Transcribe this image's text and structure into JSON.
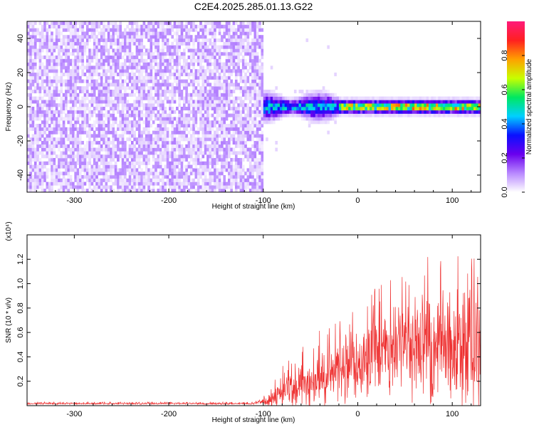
{
  "figure_title": "C2E4.2025.285.01.13.G22",
  "chart_data": [
    {
      "type": "heatmap",
      "name": "spectrogram",
      "xlabel": "Height of straight line (km)",
      "ylabel": "Frequency (Hz)",
      "xlim": [
        -350,
        130
      ],
      "ylim": [
        -50,
        50
      ],
      "xticks": [
        -300,
        -200,
        -100,
        0,
        100
      ],
      "xtick_labels": [
        "-300",
        "-200",
        "-100",
        "0",
        "100"
      ],
      "yticks": [
        -40,
        -20,
        0,
        20,
        40
      ],
      "ytick_labels": [
        "-40",
        "-20",
        "0",
        "20",
        "40"
      ],
      "colorbar": {
        "label": "Normalized spectral amplitude",
        "range": [
          0,
          1
        ],
        "ticks": [
          0.0,
          0.2,
          0.4,
          0.6,
          0.8
        ],
        "tick_labels": [
          "0.0",
          "0.2",
          "0.4",
          "0.6",
          "0.8"
        ],
        "colors": [
          "#ffffff",
          "#b888ff",
          "#6a00ee",
          "#0a10ff",
          "#00d0ff",
          "#00e860",
          "#c8ff00",
          "#ffa000",
          "#ff2020",
          "#ff1a7a"
        ]
      },
      "regions": [
        {
          "x_range": [
            -350,
            -100
          ],
          "freq_range": [
            -50,
            50
          ],
          "description": "broadband noise",
          "amplitude_range": [
            0.0,
            0.12
          ]
        },
        {
          "x_range": [
            -100,
            -20
          ],
          "center_freq": 0,
          "half_width_hz": 5,
          "peak_amplitude": 0.55
        },
        {
          "x_range": [
            -20,
            130
          ],
          "center_freq": 0,
          "half_width_hz": 3,
          "peak_amplitude": 0.95
        }
      ]
    },
    {
      "type": "line",
      "name": "snr",
      "xlabel": "Height of straight line (km)",
      "ylabel": "SNR (10 * v/v)",
      "scale_label": "(x10⁴)",
      "xlim": [
        -350,
        130
      ],
      "ylim": [
        0,
        1.4
      ],
      "xticks": [
        -300,
        -200,
        -100,
        0,
        100
      ],
      "xtick_labels": [
        "-300",
        "-200",
        "-100",
        "0",
        "100"
      ],
      "yticks": [
        0.2,
        0.4,
        0.6,
        0.8,
        1.0,
        1.2
      ],
      "ytick_labels": [
        "0.2",
        "0.4",
        "0.6",
        "0.8",
        "1.0",
        "1.2"
      ],
      "color": "#ee3030",
      "envelope_x": [
        -350,
        -300,
        -200,
        -110,
        -100,
        -90,
        -80,
        -60,
        -40,
        -20,
        0,
        20,
        40,
        60,
        80,
        100,
        120,
        130
      ],
      "envelope_mean_y": [
        0.02,
        0.02,
        0.02,
        0.02,
        0.04,
        0.07,
        0.12,
        0.2,
        0.3,
        0.38,
        0.45,
        0.6,
        0.68,
        0.72,
        0.7,
        0.65,
        0.6,
        0.55
      ],
      "envelope_peak_y": [
        0.03,
        0.03,
        0.03,
        0.03,
        0.08,
        0.18,
        0.32,
        0.5,
        0.62,
        0.7,
        0.85,
        1.0,
        1.06,
        1.2,
        1.38,
        1.34,
        1.32,
        1.3
      ],
      "samples": 1400
    }
  ]
}
